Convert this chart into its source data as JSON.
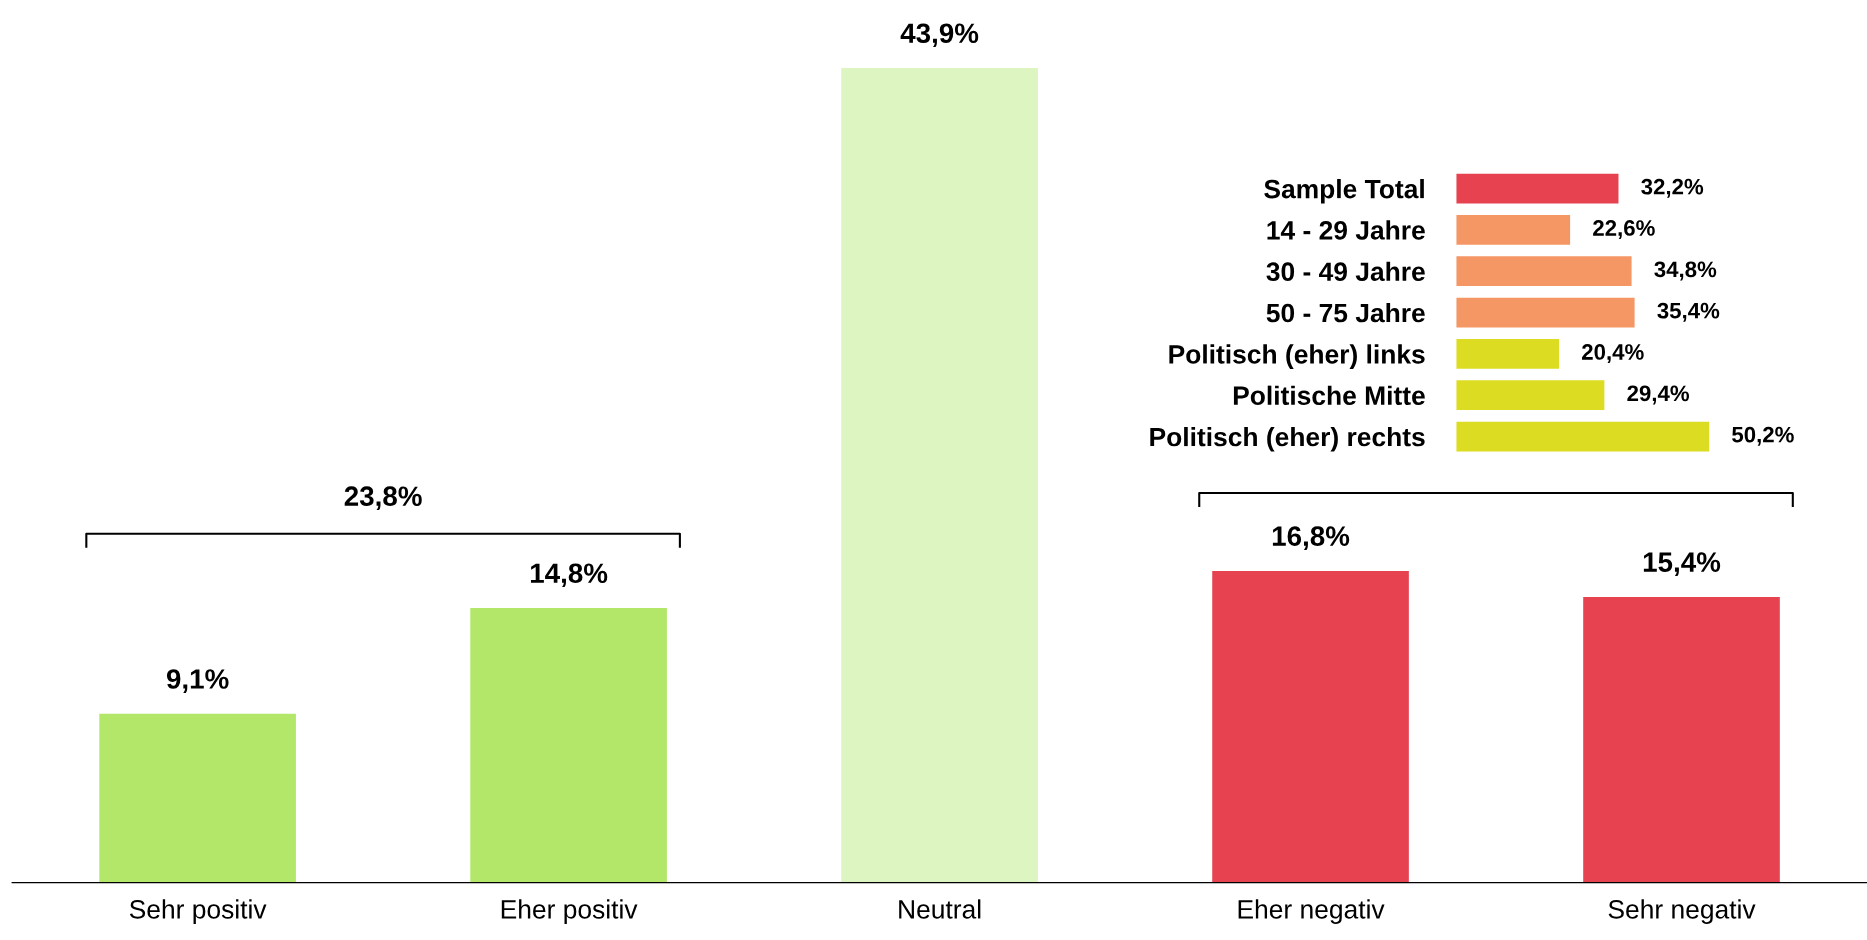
{
  "chart_data": [
    {
      "type": "bar",
      "categories": [
        "Sehr positiv",
        "Eher positiv",
        "Neutral",
        "Eher negativ",
        "Sehr negativ"
      ],
      "values": [
        9.1,
        14.8,
        43.9,
        16.8,
        15.4
      ],
      "colors": [
        "#b2e76a",
        "#b2e76a",
        "#dcf5c1",
        "#e64250",
        "#e64250"
      ],
      "value_labels": [
        "9,1%",
        "14,8%",
        "43,9%",
        "16,8%",
        "15,4%"
      ],
      "annotations": [
        "23,8%"
      ],
      "grid": false,
      "legend": false
    },
    {
      "type": "bar",
      "orientation": "horizontal",
      "categories": [
        "Sample Total",
        "14 - 29 Jahre",
        "30 - 49 Jahre",
        "50 - 75 Jahre",
        "Politisch (eher) links",
        "Politische Mitte",
        "Politisch (eher) rechts"
      ],
      "values": [
        32.2,
        22.6,
        34.8,
        35.4,
        20.4,
        29.4,
        50.2
      ],
      "colors": [
        "#e64250",
        "#f59665",
        "#f59665",
        "#f59665",
        "#dcdc22",
        "#dcdc22",
        "#dcdc22"
      ],
      "value_labels": [
        "32,2%",
        "22,6%",
        "34,8%",
        "35,4%",
        "20,4%",
        "29,4%",
        "50,2%"
      ],
      "grid": false,
      "legend": false
    }
  ]
}
